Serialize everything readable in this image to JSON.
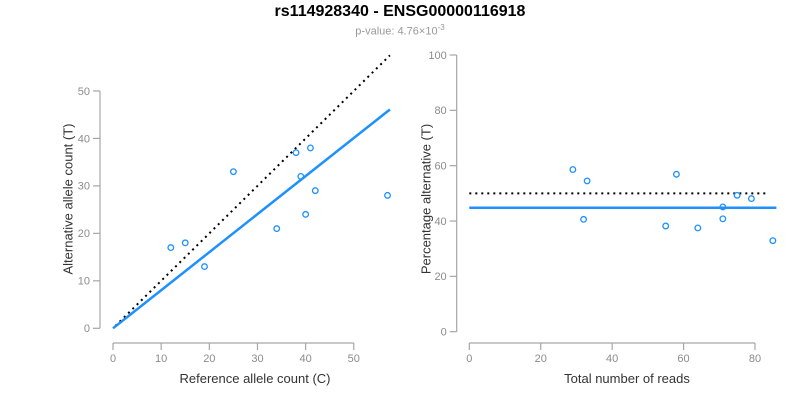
{
  "header": {
    "title": "rs114928340 - ENSG00000116918",
    "subtitle_base": "p-value: 4.76×10",
    "subtitle_exponent": "-3"
  },
  "colors": {
    "accent_blue": "#1E90FF",
    "dotted_black": "#000000",
    "axis_gray": "#A6A6A6",
    "tick_label_gray": "#8C8C8C",
    "axis_title_gray": "#333333",
    "subtitle_gray": "#999999"
  },
  "chart_data": [
    {
      "type": "scatter",
      "panel": "left",
      "xlabel": "Reference allele count (C)",
      "ylabel": "Alternative allele count (T)",
      "xticks": [
        0,
        10,
        20,
        30,
        40,
        50
      ],
      "yticks": [
        0,
        10,
        20,
        30,
        40,
        50
      ],
      "xlim": [
        0,
        57.5
      ],
      "ylim": [
        0,
        57.5
      ],
      "grid": false,
      "point_color": "#1E90FF",
      "points": [
        [
          12,
          17
        ],
        [
          15,
          18
        ],
        [
          19,
          13
        ],
        [
          25,
          33
        ],
        [
          34,
          21
        ],
        [
          38,
          37
        ],
        [
          39,
          32
        ],
        [
          40,
          24
        ],
        [
          41,
          38
        ],
        [
          42,
          29
        ],
        [
          57,
          28
        ]
      ],
      "lines": [
        {
          "name": "identity-dotted-line",
          "style": "dotted",
          "color": "#000000",
          "x": [
            0.5,
            57.5
          ],
          "y": [
            0.5,
            57.5
          ]
        },
        {
          "name": "fit-line",
          "style": "solid",
          "color": "#1E90FF",
          "x": [
            0,
            57.5
          ],
          "y": [
            0,
            46.1
          ]
        }
      ]
    },
    {
      "type": "scatter",
      "panel": "right",
      "xlabel": "Total number of reads",
      "ylabel": "Percentage alternative (T)",
      "xticks": [
        0,
        20,
        40,
        60,
        80
      ],
      "yticks": [
        0,
        20,
        40,
        60,
        80,
        100
      ],
      "xlim": [
        0,
        86
      ],
      "ylim": [
        0,
        100
      ],
      "grid": false,
      "point_color": "#1E90FF",
      "points": [
        [
          29,
          58.6
        ],
        [
          32,
          40.6
        ],
        [
          33,
          54.5
        ],
        [
          55,
          38.2
        ],
        [
          58,
          56.9
        ],
        [
          64,
          37.5
        ],
        [
          71,
          40.8
        ],
        [
          71,
          45.1
        ],
        [
          75,
          49.3
        ],
        [
          79,
          48.1
        ],
        [
          85,
          32.9
        ]
      ],
      "lines": [
        {
          "name": "fifty-percent-dotted-line",
          "style": "dotted",
          "color": "#000000",
          "x": [
            0,
            84
          ],
          "y": [
            50,
            50
          ]
        },
        {
          "name": "mean-percentage-line",
          "style": "solid",
          "color": "#1E90FF",
          "x": [
            0,
            86
          ],
          "y": [
            44.8,
            44.8
          ]
        }
      ]
    }
  ]
}
